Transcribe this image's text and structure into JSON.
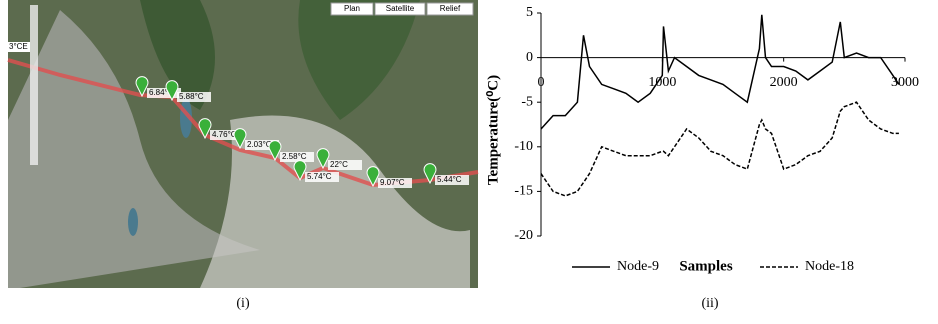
{
  "map": {
    "buttons": [
      "Plan",
      "Satellite",
      "Relief"
    ],
    "scale_label": "3°CE",
    "labels": [
      "6.84°C",
      "5.88°C",
      "4.76°C",
      "2.03°C",
      "2.58°C",
      "22°C",
      "5.74°C",
      "9.07°C",
      "5.44°C"
    ],
    "caption": "(i)"
  },
  "chart_data": {
    "type": "line",
    "caption": "(ii)",
    "ylabel": "Temperature(⁰C)",
    "xlabel": "Samples",
    "xlim": [
      0,
      3000
    ],
    "xticks": [
      0,
      1000,
      2000,
      3000
    ],
    "ylim": [
      -20,
      5
    ],
    "yticks": [
      -20,
      -15,
      -10,
      -5,
      0,
      5
    ],
    "x": [
      0,
      100,
      200,
      300,
      350,
      400,
      500,
      600,
      700,
      800,
      900,
      1000,
      1010,
      1050,
      1100,
      1200,
      1300,
      1400,
      1500,
      1600,
      1700,
      1800,
      1820,
      1850,
      1900,
      2000,
      2100,
      2200,
      2300,
      2400,
      2467,
      2500,
      2600,
      2700,
      2800,
      2900,
      2950
    ],
    "series": [
      {
        "name": "Node-9",
        "color": "#000000",
        "dash": false,
        "values": [
          -8,
          -6.5,
          -6.5,
          -5,
          2.5,
          -1,
          -3,
          -3.5,
          -4,
          -5,
          -4,
          -2,
          3.5,
          -1.5,
          0,
          -1,
          -2,
          -2.5,
          -3,
          -4,
          -5,
          1,
          4.8,
          0,
          -1,
          -1,
          -1.5,
          -2.5,
          -1.5,
          -0.5,
          4,
          0,
          0.5,
          0,
          0,
          -2,
          -3
        ]
      },
      {
        "name": "Node-18",
        "color": "#000000",
        "dash": true,
        "values": [
          -13,
          -15,
          -15.5,
          -15,
          -14,
          -13,
          -10,
          -10.5,
          -11,
          -11,
          -11,
          -10.5,
          -10.5,
          -11,
          -10,
          -8,
          -9,
          -10.5,
          -11,
          -12,
          -12.5,
          -7.5,
          -7,
          -8,
          -8.5,
          -12.5,
          -12,
          -11,
          -10.5,
          -9,
          -6,
          -5.5,
          -5,
          -7,
          -8,
          -8.5,
          -8.5
        ]
      }
    ]
  }
}
